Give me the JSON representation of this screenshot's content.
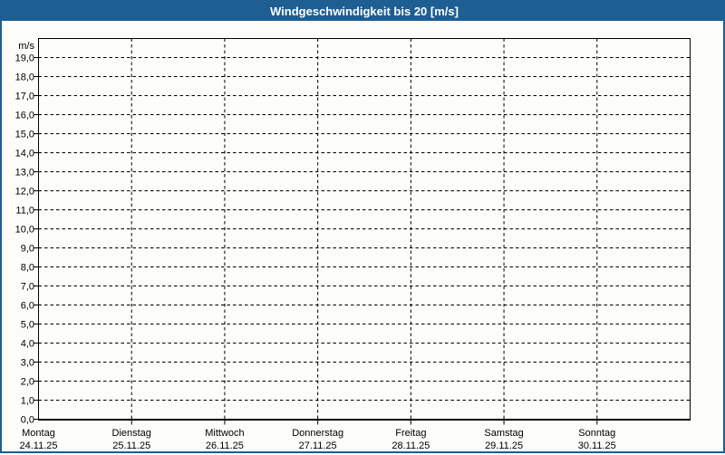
{
  "title_bar": {
    "title": "Windgeschwindigkeit bis 20 [m/s]"
  },
  "colors": {
    "title_bar_bg": "#1D5E93",
    "title_text": "#FFFFFF",
    "frame_border": "#1D5E93",
    "page_bg": "#FCFDF9",
    "axis": "#000000",
    "grid": "#000000",
    "label_text": "#000000"
  },
  "chart_data": {
    "type": "line",
    "title": "Windgeschwindigkeit bis 20 [m/s]",
    "series": [],
    "legend": "none",
    "grid": {
      "horizontal": "dashed, every 1.0 m/s",
      "vertical": "dashed, at each day boundary"
    },
    "y_axis": {
      "unit_label": "m/s",
      "min": 0,
      "max": 20,
      "tick_step": 1,
      "tick_labels_top_to_bottom": [
        "19,0",
        "18,0",
        "17,0",
        "16,0",
        "15,0",
        "14,0",
        "13,0",
        "12,0",
        "11,0",
        "10,0",
        "9,0",
        "8,0",
        "7,0",
        "6,0",
        "5,0",
        "4,0",
        "3,0",
        "2,0",
        "1,0",
        "0,0"
      ]
    },
    "x_axis": {
      "tick_labels": [
        {
          "day": "Montag",
          "date": "24.11.25"
        },
        {
          "day": "Dienstag",
          "date": "25.11.25"
        },
        {
          "day": "Mittwoch",
          "date": "26.11.25"
        },
        {
          "day": "Donnerstag",
          "date": "27.11.25"
        },
        {
          "day": "Freitag",
          "date": "28.11.25"
        },
        {
          "day": "Samstag",
          "date": "29.11.25"
        },
        {
          "day": "Sonntag",
          "date": "30.11.25"
        }
      ]
    }
  }
}
